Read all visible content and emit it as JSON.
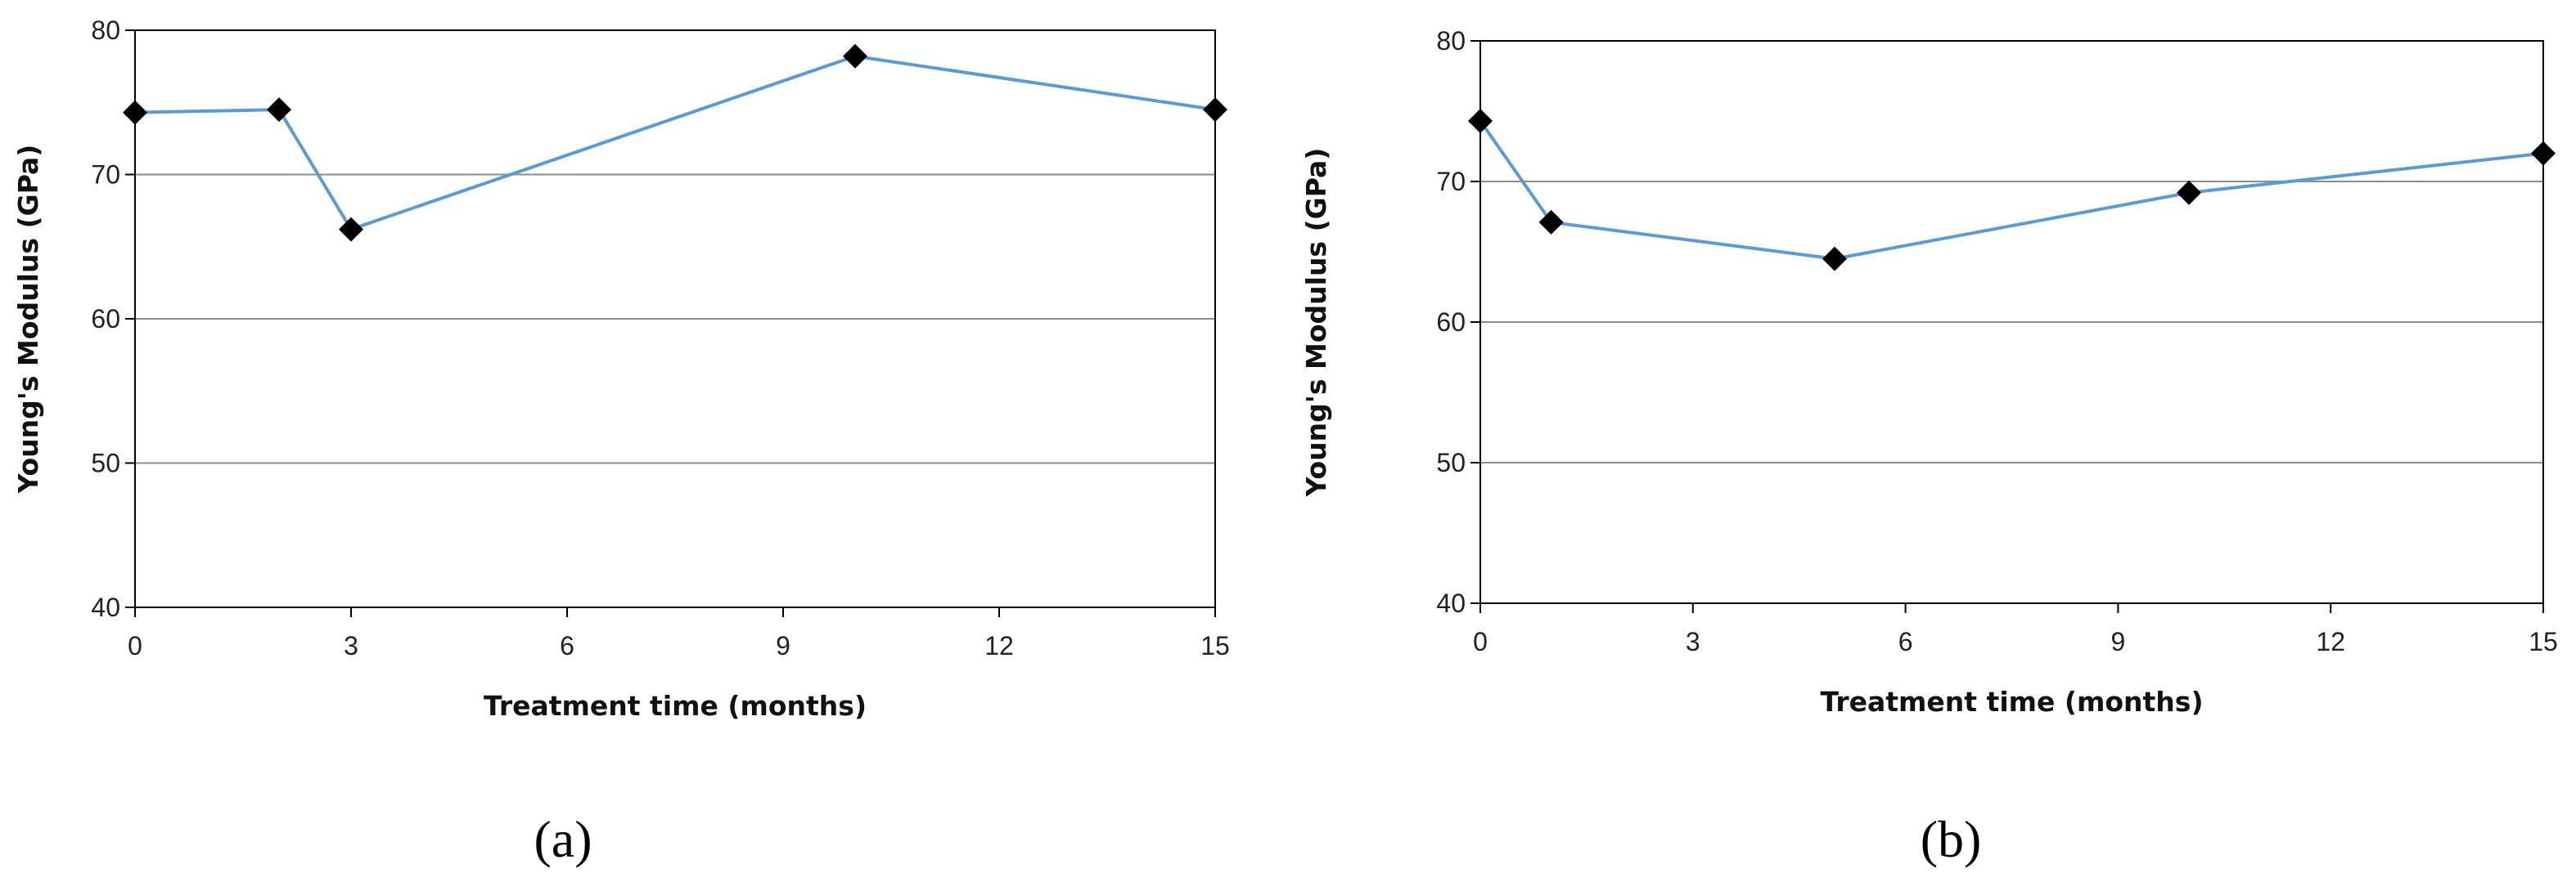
{
  "chart_data": [
    {
      "type": "line",
      "panel_label": "(a)",
      "title": "",
      "xlabel": "Treatment time (months)",
      "ylabel": "Young's Modulus (GPa)",
      "xlim": [
        0,
        15
      ],
      "ylim": [
        40,
        80
      ],
      "xticks": [
        0,
        3,
        6,
        9,
        12,
        15
      ],
      "yticks": [
        40,
        50,
        60,
        70,
        80
      ],
      "grid": "horizontal",
      "series": [
        {
          "name": "Young's Modulus",
          "x": [
            0,
            2,
            3,
            10,
            15
          ],
          "y": [
            74.3,
            74.5,
            66.2,
            78.2,
            74.5
          ]
        }
      ],
      "colors": {
        "line": "#5b9bd5",
        "marker": "#000000",
        "grid": "#8c8c8c",
        "axis": "#000000"
      }
    },
    {
      "type": "line",
      "panel_label": "(b)",
      "title": "",
      "xlabel": "Treatment time (months)",
      "ylabel": "Young's Modulus (GPa)",
      "xlim": [
        0,
        15
      ],
      "ylim": [
        40,
        80
      ],
      "xticks": [
        0,
        3,
        6,
        9,
        12,
        15
      ],
      "yticks": [
        40,
        50,
        60,
        70,
        80
      ],
      "grid": "horizontal",
      "series": [
        {
          "name": "Young's Modulus",
          "x": [
            0,
            1,
            5,
            10,
            15
          ],
          "y": [
            74.3,
            67.1,
            64.5,
            69.2,
            72.0
          ]
        }
      ],
      "colors": {
        "line": "#5b9bd5",
        "marker": "#000000",
        "grid": "#8c8c8c",
        "axis": "#000000"
      }
    }
  ]
}
